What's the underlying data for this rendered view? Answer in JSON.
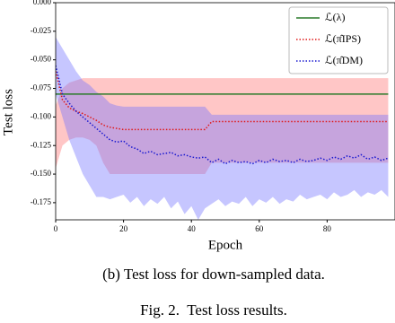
{
  "chart_data": {
    "type": "line",
    "x_label": "Epoch",
    "y_label": "Test loss",
    "x": [
      0,
      2,
      4,
      6,
      8,
      10,
      12,
      14,
      16,
      18,
      20,
      22,
      24,
      26,
      28,
      30,
      32,
      34,
      36,
      38,
      40,
      42,
      44,
      46,
      48,
      50,
      52,
      54,
      56,
      58,
      60,
      62,
      64,
      66,
      68,
      70,
      72,
      74,
      76,
      78,
      80,
      82,
      84,
      86,
      88,
      90,
      92,
      94,
      96,
      98
    ],
    "xlim": [
      0,
      100
    ],
    "xticks": [
      0,
      20,
      40,
      60,
      80
    ],
    "ylim": [
      -0.19,
      0.0
    ],
    "yticks": [
      {
        "value": 0,
        "label": "0.000"
      },
      -0.025,
      {
        "value": -0.05,
        "label": "-0.050"
      },
      -0.075,
      {
        "value": -0.1,
        "label": "-0.100"
      },
      -0.125,
      {
        "value": -0.15,
        "label": "-0.150"
      },
      -0.175
    ],
    "legend": "upper right",
    "series": [
      {
        "name": "ℒ(λ)",
        "color": "#2a7a2a",
        "style": "solid",
        "values": [
          -0.08,
          -0.08,
          -0.08,
          -0.08,
          -0.08,
          -0.08,
          -0.08,
          -0.08,
          -0.08,
          -0.08,
          -0.08,
          -0.08,
          -0.08,
          -0.08,
          -0.08,
          -0.08,
          -0.08,
          -0.08,
          -0.08,
          -0.08,
          -0.08,
          -0.08,
          -0.08,
          -0.08,
          -0.08,
          -0.08,
          -0.08,
          -0.08,
          -0.08,
          -0.08,
          -0.08,
          -0.08,
          -0.08,
          -0.08,
          -0.08,
          -0.08,
          -0.08,
          -0.08,
          -0.08,
          -0.08,
          -0.08,
          -0.08,
          -0.08,
          -0.08,
          -0.08,
          -0.08,
          -0.08,
          -0.08,
          -0.08,
          -0.08
        ]
      },
      {
        "name": "ℒ(π̂IPS)",
        "color": "#e01818",
        "style": "dotted",
        "band_color": "#ff7070",
        "values": [
          -0.06,
          -0.085,
          -0.092,
          -0.095,
          -0.097,
          -0.1,
          -0.103,
          -0.107,
          -0.109,
          -0.11,
          -0.111,
          -0.111,
          -0.111,
          -0.111,
          -0.111,
          -0.111,
          -0.111,
          -0.111,
          -0.111,
          -0.111,
          -0.111,
          -0.111,
          -0.111,
          -0.104,
          -0.104,
          -0.104,
          -0.104,
          -0.104,
          -0.104,
          -0.104,
          -0.104,
          -0.104,
          -0.104,
          -0.104,
          -0.104,
          -0.104,
          -0.104,
          -0.104,
          -0.104,
          -0.104,
          -0.104,
          -0.104,
          -0.104,
          -0.104,
          -0.104,
          -0.104,
          -0.104,
          -0.104,
          -0.104,
          -0.104
        ],
        "upper": [
          -0.09,
          -0.075,
          -0.07,
          -0.068,
          -0.066,
          -0.066,
          -0.066,
          -0.066,
          -0.066,
          -0.066,
          -0.066,
          -0.066,
          -0.066,
          -0.066,
          -0.066,
          -0.066,
          -0.066,
          -0.066,
          -0.066,
          -0.066,
          -0.066,
          -0.066,
          -0.066,
          -0.066,
          -0.066,
          -0.066,
          -0.066,
          -0.066,
          -0.066,
          -0.066,
          -0.066,
          -0.066,
          -0.066,
          -0.066,
          -0.066,
          -0.066,
          -0.066,
          -0.066,
          -0.066,
          -0.066,
          -0.066,
          -0.066,
          -0.066,
          -0.066,
          -0.066,
          -0.066,
          -0.066,
          -0.066,
          -0.066,
          -0.066
        ],
        "lower": [
          -0.145,
          -0.125,
          -0.12,
          -0.118,
          -0.118,
          -0.12,
          -0.125,
          -0.14,
          -0.15,
          -0.15,
          -0.15,
          -0.15,
          -0.15,
          -0.15,
          -0.15,
          -0.15,
          -0.15,
          -0.15,
          -0.15,
          -0.15,
          -0.15,
          -0.15,
          -0.15,
          -0.14,
          -0.14,
          -0.14,
          -0.14,
          -0.14,
          -0.14,
          -0.14,
          -0.14,
          -0.14,
          -0.14,
          -0.14,
          -0.14,
          -0.14,
          -0.14,
          -0.14,
          -0.14,
          -0.14,
          -0.14,
          -0.14,
          -0.14,
          -0.14,
          -0.14,
          -0.14,
          -0.14,
          -0.14,
          -0.14,
          -0.14
        ]
      },
      {
        "name": "ℒ(π̂DM)",
        "color": "#1818d0",
        "style": "dotted",
        "band_color": "#7070ff",
        "values": [
          -0.055,
          -0.08,
          -0.088,
          -0.095,
          -0.1,
          -0.105,
          -0.11,
          -0.115,
          -0.12,
          -0.122,
          -0.121,
          -0.126,
          -0.128,
          -0.132,
          -0.13,
          -0.133,
          -0.132,
          -0.131,
          -0.134,
          -0.133,
          -0.135,
          -0.136,
          -0.135,
          -0.14,
          -0.137,
          -0.141,
          -0.138,
          -0.14,
          -0.139,
          -0.141,
          -0.138,
          -0.14,
          -0.137,
          -0.139,
          -0.138,
          -0.14,
          -0.137,
          -0.139,
          -0.138,
          -0.136,
          -0.138,
          -0.135,
          -0.137,
          -0.134,
          -0.136,
          -0.133,
          -0.137,
          -0.135,
          -0.138,
          -0.136
        ],
        "upper": [
          -0.03,
          -0.04,
          -0.05,
          -0.06,
          -0.068,
          -0.072,
          -0.078,
          -0.082,
          -0.088,
          -0.09,
          -0.091,
          -0.091,
          -0.091,
          -0.091,
          -0.091,
          -0.091,
          -0.091,
          -0.091,
          -0.091,
          -0.091,
          -0.091,
          -0.091,
          -0.091,
          -0.098,
          -0.098,
          -0.098,
          -0.098,
          -0.098,
          -0.098,
          -0.098,
          -0.098,
          -0.098,
          -0.098,
          -0.098,
          -0.098,
          -0.098,
          -0.098,
          -0.098,
          -0.098,
          -0.098,
          -0.098,
          -0.098,
          -0.098,
          -0.098,
          -0.098,
          -0.098,
          -0.098,
          -0.098,
          -0.098,
          -0.098
        ],
        "lower": [
          -0.08,
          -0.1,
          -0.12,
          -0.135,
          -0.15,
          -0.16,
          -0.17,
          -0.17,
          -0.172,
          -0.17,
          -0.168,
          -0.175,
          -0.17,
          -0.178,
          -0.172,
          -0.176,
          -0.17,
          -0.18,
          -0.174,
          -0.185,
          -0.178,
          -0.19,
          -0.18,
          -0.176,
          -0.172,
          -0.178,
          -0.174,
          -0.176,
          -0.17,
          -0.178,
          -0.172,
          -0.175,
          -0.17,
          -0.176,
          -0.172,
          -0.174,
          -0.168,
          -0.172,
          -0.17,
          -0.168,
          -0.172,
          -0.166,
          -0.17,
          -0.168,
          -0.164,
          -0.17,
          -0.166,
          -0.168,
          -0.164,
          -0.17
        ]
      }
    ]
  },
  "caption": "(b) Test loss for down-sampled data.",
  "figure_caption": "Fig. 2.  Test loss results."
}
